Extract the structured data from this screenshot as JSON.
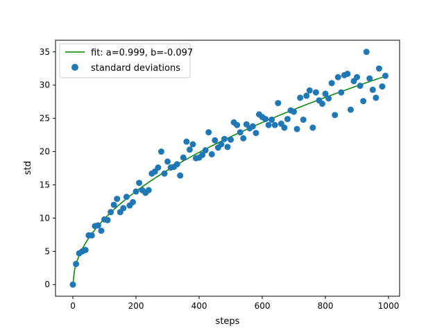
{
  "chart_data": {
    "type": "scatter",
    "title": "",
    "xlabel": "steps",
    "ylabel": "std",
    "xlim": [
      -55,
      1035
    ],
    "ylim": [
      -1.75,
      36.75
    ],
    "xticks": [
      0,
      200,
      400,
      600,
      800,
      1000
    ],
    "yticks": [
      0,
      5,
      10,
      15,
      20,
      25,
      30,
      35
    ],
    "xtick_labels": [
      "0",
      "200",
      "400",
      "600",
      "800",
      "1000"
    ],
    "ytick_labels": [
      "0",
      "5",
      "10",
      "15",
      "20",
      "25",
      "30",
      "35"
    ],
    "grid": false,
    "legend_position": "upper-left",
    "series": [
      {
        "name": "fit: a=0.999, b=-0.097",
        "kind": "line",
        "color": "#008000",
        "formula_points": "y = a*sqrt(x) + b",
        "a": 0.999,
        "b": -0.097
      },
      {
        "name": "standard deviations",
        "kind": "scatter",
        "color": "#1f77b4",
        "points": [
          [
            0,
            0.0
          ],
          [
            10,
            3.1
          ],
          [
            20,
            4.7
          ],
          [
            30,
            5.0
          ],
          [
            40,
            5.2
          ],
          [
            50,
            7.4
          ],
          [
            60,
            7.4
          ],
          [
            70,
            8.8
          ],
          [
            80,
            8.9
          ],
          [
            90,
            8.1
          ],
          [
            100,
            9.8
          ],
          [
            110,
            9.7
          ],
          [
            120,
            10.9
          ],
          [
            130,
            12.0
          ],
          [
            140,
            12.9
          ],
          [
            150,
            10.9
          ],
          [
            160,
            11.5
          ],
          [
            170,
            13.2
          ],
          [
            180,
            11.9
          ],
          [
            190,
            12.4
          ],
          [
            200,
            14.0
          ],
          [
            210,
            15.3
          ],
          [
            220,
            14.2
          ],
          [
            230,
            13.8
          ],
          [
            240,
            14.2
          ],
          [
            250,
            16.7
          ],
          [
            260,
            17.0
          ],
          [
            270,
            17.6
          ],
          [
            280,
            20.0
          ],
          [
            290,
            16.7
          ],
          [
            300,
            18.5
          ],
          [
            310,
            17.6
          ],
          [
            320,
            17.7
          ],
          [
            330,
            18.1
          ],
          [
            340,
            16.4
          ],
          [
            350,
            19.1
          ],
          [
            360,
            21.5
          ],
          [
            370,
            20.3
          ],
          [
            380,
            21.1
          ],
          [
            390,
            19.0
          ],
          [
            400,
            19.1
          ],
          [
            410,
            19.5
          ],
          [
            420,
            20.2
          ],
          [
            430,
            22.9
          ],
          [
            440,
            19.6
          ],
          [
            450,
            21.7
          ],
          [
            460,
            20.6
          ],
          [
            470,
            21.1
          ],
          [
            480,
            21.9
          ],
          [
            490,
            20.7
          ],
          [
            500,
            21.8
          ],
          [
            510,
            24.4
          ],
          [
            520,
            24.0
          ],
          [
            530,
            22.9
          ],
          [
            540,
            22.0
          ],
          [
            550,
            24.1
          ],
          [
            560,
            23.5
          ],
          [
            570,
            23.8
          ],
          [
            580,
            22.8
          ],
          [
            590,
            25.6
          ],
          [
            600,
            25.2
          ],
          [
            610,
            24.9
          ],
          [
            620,
            24.0
          ],
          [
            630,
            24.8
          ],
          [
            640,
            24.0
          ],
          [
            650,
            27.3
          ],
          [
            660,
            24.2
          ],
          [
            670,
            23.6
          ],
          [
            680,
            24.9
          ],
          [
            690,
            26.2
          ],
          [
            700,
            26.0
          ],
          [
            710,
            23.4
          ],
          [
            720,
            28.1
          ],
          [
            730,
            24.8
          ],
          [
            740,
            28.4
          ],
          [
            750,
            29.2
          ],
          [
            760,
            23.6
          ],
          [
            770,
            28.9
          ],
          [
            780,
            27.7
          ],
          [
            790,
            27.2
          ],
          [
            800,
            28.7
          ],
          [
            810,
            28.0
          ],
          [
            820,
            30.3
          ],
          [
            830,
            25.5
          ],
          [
            840,
            31.2
          ],
          [
            850,
            28.9
          ],
          [
            860,
            31.5
          ],
          [
            870,
            31.7
          ],
          [
            880,
            26.3
          ],
          [
            890,
            30.6
          ],
          [
            900,
            31.2
          ],
          [
            910,
            29.9
          ],
          [
            920,
            27.6
          ],
          [
            930,
            35.0
          ],
          [
            940,
            31.0
          ],
          [
            950,
            29.3
          ],
          [
            960,
            28.1
          ],
          [
            970,
            32.5
          ],
          [
            980,
            29.8
          ],
          [
            990,
            31.4
          ]
        ]
      }
    ]
  }
}
